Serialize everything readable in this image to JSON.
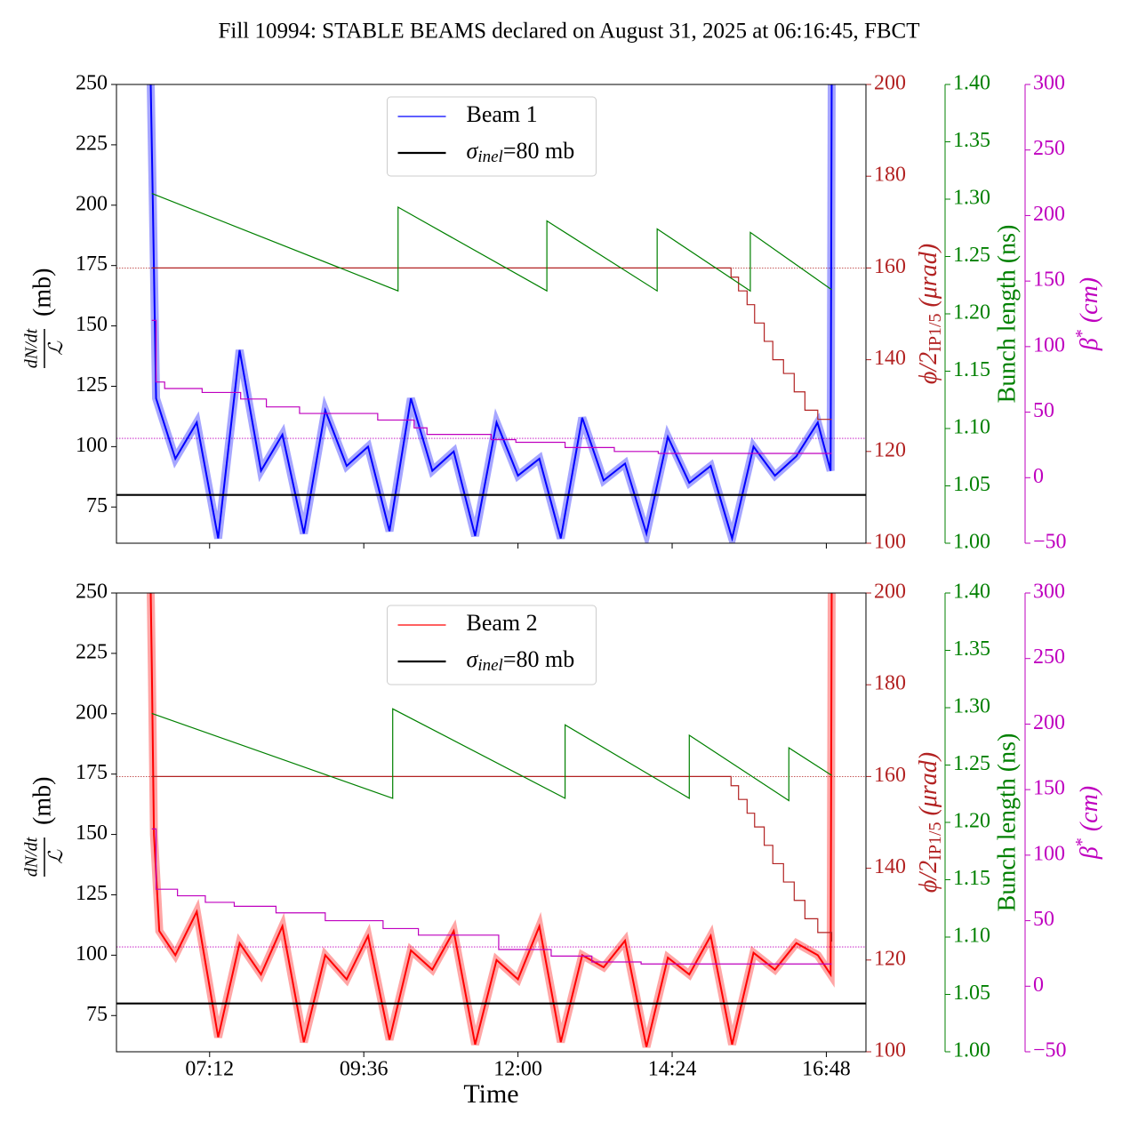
{
  "title": "Fill 10994: STABLE BEAMS declared on August 31, 2025 at 06:16:45, FBCT",
  "chart_data": [
    {
      "type": "line",
      "xlim": [
        "05:45",
        "17:25"
      ],
      "xticks": [
        "07:12",
        "09:36",
        "12:00",
        "14:24",
        "16:48"
      ],
      "ylim": [
        60,
        250
      ],
      "yticks": [
        75,
        100,
        125,
        150,
        175,
        200,
        225,
        250
      ],
      "ylabel": {
        "numerator": "dN/dt",
        "denominator": "ℒ",
        "unit": "(mb)"
      },
      "y2lim": [
        100,
        200
      ],
      "y2ticks": [
        100,
        120,
        140,
        160,
        180,
        200
      ],
      "y2label": {
        "main": "ϕ/2",
        "sub": "IP1/5",
        "unit": " (μrad)"
      },
      "y3lim": [
        1.0,
        1.4
      ],
      "y3ticks": [
        {
          "value": 1.0,
          "label": "1.00"
        },
        1.05,
        {
          "value": 1.1,
          "label": "1.10"
        },
        1.15,
        {
          "value": 1.2,
          "label": "1.20"
        },
        1.25,
        {
          "value": 1.3,
          "label": "1.30"
        },
        1.35,
        {
          "value": 1.4,
          "label": "1.40"
        }
      ],
      "y3label": "Bunch length (ns)",
      "y4lim": [
        -50,
        300
      ],
      "y4ticks": [
        {
          "value": -50,
          "label": "−50"
        },
        0,
        50,
        100,
        150,
        200,
        250,
        300
      ],
      "y4label": {
        "main": "β",
        "sup": "*",
        "unit": " (cm)"
      },
      "axis_colors": {
        "y2": "#b22222",
        "y3": "#008000",
        "y4": "#bf00bf"
      },
      "legend": "upper center",
      "series": [
        {
          "name": "Beam 1",
          "color": "#0000ff",
          "x": [
            "06:17",
            "06:19",
            "06:22",
            "06:40",
            "07:00",
            "07:20",
            "07:40",
            "08:00",
            "08:20",
            "08:40",
            "09:00",
            "09:20",
            "09:40",
            "10:00",
            "10:20",
            "10:40",
            "11:00",
            "11:20",
            "11:40",
            "12:00",
            "12:20",
            "12:40",
            "13:00",
            "13:20",
            "13:40",
            "14:00",
            "14:20",
            "14:40",
            "15:00",
            "15:20",
            "15:40",
            "16:00",
            "16:20",
            "16:40",
            "16:52",
            "16:53"
          ],
          "values": [
            250,
            200,
            120,
            95,
            110,
            62,
            140,
            90,
            105,
            64,
            115,
            92,
            100,
            65,
            120,
            90,
            98,
            63,
            110,
            88,
            95,
            62,
            112,
            86,
            93,
            64,
            104,
            85,
            92,
            62,
            100,
            88,
            96,
            110,
            90,
            250
          ]
        },
        {
          "color": "#b22222",
          "axis": "y2",
          "step": true,
          "x": [
            "06:18",
            "15:19",
            "15:26",
            "15:34",
            "15:41",
            "15:50",
            "15:58",
            "16:08",
            "16:18",
            "16:28",
            "16:40",
            "16:53"
          ],
          "values": [
            160,
            158,
            155,
            152,
            148,
            144,
            140,
            137,
            133,
            129,
            127,
            127
          ]
        },
        {
          "color": "#008000",
          "axis": "y3",
          "x": [
            "06:18",
            "10:08",
            "10:08",
            "12:27",
            "12:27",
            "14:10",
            "14:10",
            "15:37",
            "15:37",
            "16:53"
          ],
          "values": [
            1.305,
            1.22,
            1.293,
            1.22,
            1.281,
            1.22,
            1.274,
            1.22,
            1.271,
            1.221
          ]
        },
        {
          "color": "#bf00bf",
          "axis": "y4",
          "step": true,
          "x": [
            "06:18",
            "06:22",
            "06:30",
            "07:05",
            "07:41",
            "08:05",
            "08:36",
            "09:49",
            "10:23",
            "10:35",
            "11:35",
            "11:58",
            "12:44",
            "13:30",
            "14:11",
            "16:53"
          ],
          "values": [
            120,
            73,
            68,
            65,
            60,
            54,
            49,
            44,
            38,
            33,
            29,
            27,
            23,
            20,
            18.5,
            18.5
          ]
        }
      ],
      "hlines": [
        {
          "value": 80,
          "axis": "y",
          "color": "#000000",
          "label": [
            "σ",
            "inel",
            "=80 mb"
          ]
        },
        {
          "value": 160,
          "axis": "y2",
          "color": "#b22222",
          "dotted": true
        },
        {
          "value": 30,
          "axis": "y4",
          "color": "#bf00bf",
          "dotted": true
        }
      ]
    },
    {
      "type": "line",
      "xlim": [
        "05:45",
        "17:25"
      ],
      "xticks": [
        "07:12",
        "09:36",
        "12:00",
        "14:24",
        "16:48"
      ],
      "xlabel": "Time",
      "ylim": [
        60,
        250
      ],
      "yticks": [
        75,
        100,
        125,
        150,
        175,
        200,
        225,
        250
      ],
      "ylabel": {
        "numerator": "dN/dt",
        "denominator": "ℒ",
        "unit": "(mb)"
      },
      "y2lim": [
        100,
        200
      ],
      "y2ticks": [
        100,
        120,
        140,
        160,
        180,
        200
      ],
      "y2label": {
        "main": "ϕ/2",
        "sub": "IP1/5",
        "unit": " (μrad)"
      },
      "y3lim": [
        1.0,
        1.4
      ],
      "y3ticks": [
        {
          "value": 1.0,
          "label": "1.00"
        },
        1.05,
        {
          "value": 1.1,
          "label": "1.10"
        },
        1.15,
        {
          "value": 1.2,
          "label": "1.20"
        },
        1.25,
        {
          "value": 1.3,
          "label": "1.30"
        },
        1.35,
        {
          "value": 1.4,
          "label": "1.40"
        }
      ],
      "y3label": "Bunch length (ns)",
      "y4lim": [
        -50,
        300
      ],
      "y4ticks": [
        {
          "value": -50,
          "label": "−50"
        },
        0,
        50,
        100,
        150,
        200,
        250,
        300
      ],
      "y4label": {
        "main": "β",
        "sup": "*",
        "unit": " (cm)"
      },
      "axis_colors": {
        "y2": "#b22222",
        "y3": "#008000",
        "y4": "#bf00bf"
      },
      "legend": "upper center",
      "series": [
        {
          "name": "Beam 2",
          "color": "#ff0000",
          "x": [
            "06:17",
            "06:18",
            "06:20",
            "06:25",
            "06:40",
            "07:00",
            "07:20",
            "07:40",
            "08:00",
            "08:20",
            "08:40",
            "09:00",
            "09:20",
            "09:40",
            "10:00",
            "10:20",
            "10:40",
            "11:00",
            "11:20",
            "11:40",
            "12:00",
            "12:20",
            "12:40",
            "13:00",
            "13:20",
            "13:40",
            "14:00",
            "14:20",
            "14:40",
            "15:00",
            "15:20",
            "15:40",
            "16:00",
            "16:20",
            "16:40",
            "16:52",
            "16:53"
          ],
          "values": [
            250,
            220,
            150,
            110,
            100,
            118,
            66,
            105,
            92,
            112,
            64,
            100,
            90,
            108,
            65,
            102,
            94,
            110,
            63,
            98,
            90,
            112,
            64,
            100,
            95,
            106,
            62,
            99,
            92,
            108,
            63,
            101,
            94,
            105,
            100,
            92,
            250
          ]
        },
        {
          "color": "#b22222",
          "axis": "y2",
          "step": true,
          "x": [
            "06:18",
            "15:19",
            "15:26",
            "15:34",
            "15:41",
            "15:50",
            "15:58",
            "16:08",
            "16:18",
            "16:28",
            "16:40",
            "16:53"
          ],
          "values": [
            160,
            158,
            155,
            152,
            149,
            145,
            141,
            137,
            133,
            129,
            126,
            124
          ]
        },
        {
          "color": "#008000",
          "axis": "y3",
          "x": [
            "06:18",
            "10:03",
            "10:03",
            "12:44",
            "12:44",
            "14:40",
            "14:40",
            "16:13",
            "16:13",
            "16:53"
          ],
          "values": [
            1.295,
            1.221,
            1.299,
            1.221,
            1.285,
            1.221,
            1.276,
            1.219,
            1.265,
            1.241
          ]
        },
        {
          "color": "#bf00bf",
          "axis": "y4",
          "step": true,
          "x": [
            "06:18",
            "06:22",
            "06:42",
            "07:08",
            "07:35",
            "08:14",
            "09:00",
            "09:54",
            "10:27",
            "11:42",
            "12:31",
            "13:09",
            "13:55",
            "16:53"
          ],
          "values": [
            120,
            74,
            69,
            64,
            61,
            56,
            50,
            44,
            39,
            28,
            23,
            18.5,
            17,
            17
          ]
        }
      ],
      "hlines": [
        {
          "value": 80,
          "axis": "y",
          "color": "#000000",
          "label": [
            "σ",
            "inel",
            "=80 mb"
          ]
        },
        {
          "value": 160,
          "axis": "y2",
          "color": "#b22222",
          "dotted": true
        },
        {
          "value": 30,
          "axis": "y4",
          "color": "#bf00bf",
          "dotted": true
        }
      ]
    }
  ]
}
